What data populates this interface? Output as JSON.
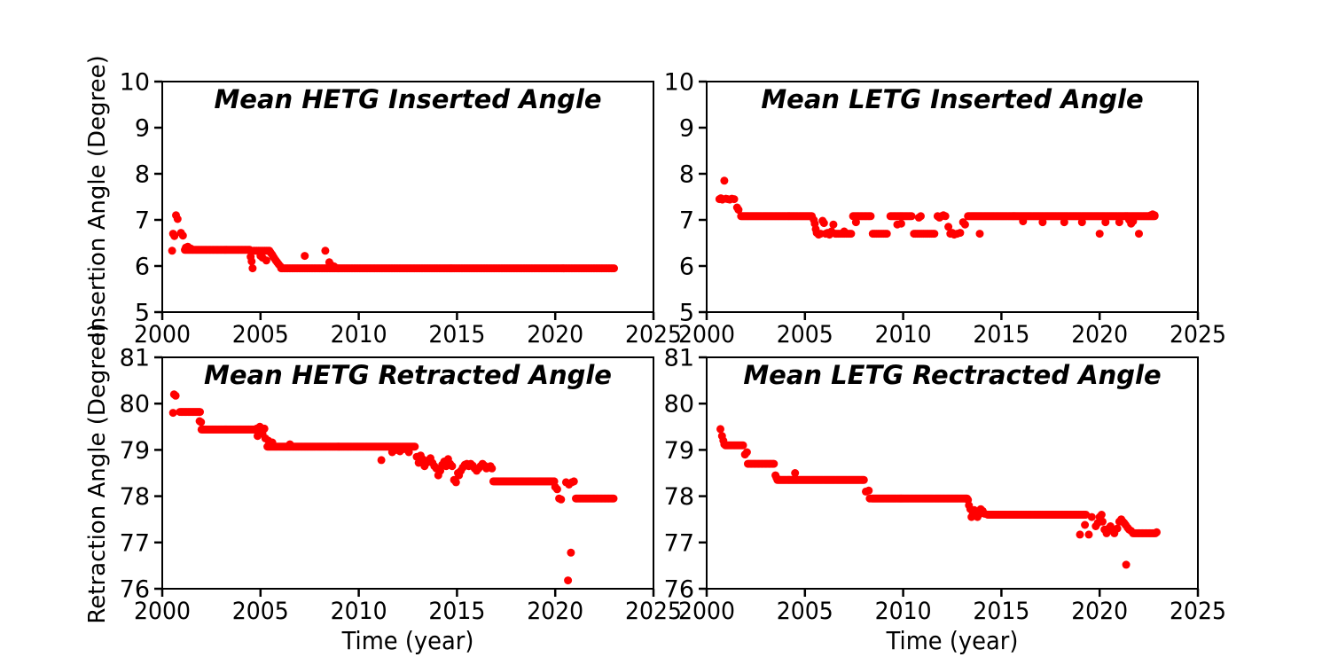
{
  "figure": {
    "background": "#ffffff",
    "axes_color": "#000000",
    "marker_color": "#ff0000"
  },
  "chart_data": [
    {
      "id": "hetg-inserted",
      "type": "scatter",
      "title": "Mean HETG Inserted Angle",
      "xlabel": "",
      "ylabel": "Insertion Angle (Degree)",
      "xlim": [
        2000,
        2025
      ],
      "ylim": [
        5,
        10
      ],
      "xticks": [
        2000,
        2005,
        2010,
        2015,
        2020,
        2025
      ],
      "yticks": [
        5,
        6,
        7,
        8,
        9,
        10
      ],
      "grid": false,
      "legend": "none",
      "marker_color": "#ff0000",
      "series": {
        "runs_format": "[x_start, x_end, y, x_step] dense monthly runs",
        "runs": [
          [
            2001.15,
            2004.45,
            6.35,
            0.06
          ],
          [
            2004.65,
            2005.45,
            6.33,
            0.08
          ],
          [
            2006.05,
            2023.0,
            5.95,
            0.07
          ]
        ],
        "points": [
          [
            2000.5,
            6.33
          ],
          [
            2000.55,
            6.7
          ],
          [
            2000.62,
            6.65
          ],
          [
            2000.7,
            7.1
          ],
          [
            2000.78,
            7.02
          ],
          [
            2000.95,
            6.72
          ],
          [
            2001.05,
            6.66
          ],
          [
            2001.2,
            6.4
          ],
          [
            2001.3,
            6.42
          ],
          [
            2001.45,
            6.38
          ],
          [
            2004.5,
            6.2
          ],
          [
            2004.55,
            6.1
          ],
          [
            2004.6,
            5.95
          ],
          [
            2005.0,
            6.22
          ],
          [
            2005.1,
            6.18
          ],
          [
            2005.3,
            6.12
          ],
          [
            2005.5,
            6.3
          ],
          [
            2005.55,
            6.27
          ],
          [
            2005.6,
            6.24
          ],
          [
            2005.65,
            6.2
          ],
          [
            2005.7,
            6.17
          ],
          [
            2005.78,
            6.12
          ],
          [
            2005.85,
            6.08
          ],
          [
            2005.92,
            6.04
          ],
          [
            2006.0,
            6.0
          ],
          [
            2007.25,
            6.22
          ],
          [
            2008.3,
            6.33
          ],
          [
            2008.5,
            6.08
          ],
          [
            2008.6,
            6.02
          ],
          [
            2008.75,
            5.99
          ]
        ]
      }
    },
    {
      "id": "letg-inserted",
      "type": "scatter",
      "title": "Mean LETG Inserted Angle",
      "xlabel": "",
      "ylabel": "",
      "xlim": [
        2000,
        2025
      ],
      "ylim": [
        5,
        10
      ],
      "xticks": [
        2000,
        2005,
        2010,
        2015,
        2020,
        2025
      ],
      "yticks": [
        5,
        6,
        7,
        8,
        9,
        10
      ],
      "grid": false,
      "legend": "none",
      "marker_color": "#ff0000",
      "series": {
        "runs_format": "[x_start, x_end, y, x_step] dense monthly runs",
        "runs": [
          [
            2001.75,
            2005.35,
            7.08,
            0.05
          ],
          [
            2006.55,
            2007.35,
            6.7,
            0.08
          ],
          [
            2007.45,
            2008.35,
            7.08,
            0.06
          ],
          [
            2008.45,
            2009.25,
            6.7,
            0.09
          ],
          [
            2009.35,
            2010.45,
            7.08,
            0.06
          ],
          [
            2010.55,
            2011.65,
            6.7,
            0.08
          ],
          [
            2013.3,
            2022.8,
            7.08,
            0.05
          ]
        ],
        "points": [
          [
            2000.65,
            7.45
          ],
          [
            2000.72,
            7.47
          ],
          [
            2000.8,
            7.44
          ],
          [
            2000.9,
            7.85
          ],
          [
            2000.98,
            7.46
          ],
          [
            2001.08,
            7.45
          ],
          [
            2001.18,
            7.44
          ],
          [
            2001.28,
            7.46
          ],
          [
            2001.4,
            7.45
          ],
          [
            2001.55,
            7.27
          ],
          [
            2001.62,
            7.22
          ],
          [
            2005.45,
            7.0
          ],
          [
            2005.5,
            6.92
          ],
          [
            2005.55,
            6.8
          ],
          [
            2005.6,
            6.72
          ],
          [
            2005.7,
            6.68
          ],
          [
            2005.8,
            6.7
          ],
          [
            2005.9,
            6.98
          ],
          [
            2005.97,
            6.93
          ],
          [
            2006.05,
            6.7
          ],
          [
            2006.15,
            6.72
          ],
          [
            2006.25,
            6.68
          ],
          [
            2006.35,
            6.75
          ],
          [
            2006.45,
            6.9
          ],
          [
            2007.0,
            6.75
          ],
          [
            2007.6,
            6.95
          ],
          [
            2009.7,
            6.9
          ],
          [
            2009.9,
            6.92
          ],
          [
            2010.8,
            7.05
          ],
          [
            2010.9,
            7.08
          ],
          [
            2011.75,
            7.08
          ],
          [
            2011.85,
            7.05
          ],
          [
            2011.95,
            7.08
          ],
          [
            2012.05,
            7.1
          ],
          [
            2012.15,
            7.08
          ],
          [
            2012.3,
            6.85
          ],
          [
            2012.4,
            6.7
          ],
          [
            2012.5,
            6.72
          ],
          [
            2012.6,
            6.68
          ],
          [
            2012.75,
            6.7
          ],
          [
            2012.9,
            6.72
          ],
          [
            2013.05,
            6.95
          ],
          [
            2013.15,
            6.9
          ],
          [
            2013.9,
            6.7
          ],
          [
            2016.1,
            6.97
          ],
          [
            2017.1,
            6.95
          ],
          [
            2018.2,
            6.95
          ],
          [
            2019.1,
            6.95
          ],
          [
            2020.0,
            6.7
          ],
          [
            2020.3,
            6.95
          ],
          [
            2021.0,
            6.95
          ],
          [
            2021.5,
            7.0
          ],
          [
            2021.6,
            6.92
          ],
          [
            2021.7,
            6.97
          ],
          [
            2022.0,
            6.7
          ],
          [
            2022.6,
            7.1
          ],
          [
            2022.7,
            7.12
          ],
          [
            2022.8,
            7.1
          ]
        ]
      }
    },
    {
      "id": "hetg-retracted",
      "type": "scatter",
      "title": "Mean HETG Retracted Angle",
      "xlabel": "Time (year)",
      "ylabel": "Retraction Angle (Degree)",
      "xlim": [
        2000,
        2025
      ],
      "ylim": [
        76,
        81
      ],
      "xticks": [
        2000,
        2005,
        2010,
        2015,
        2020,
        2025
      ],
      "yticks": [
        76,
        77,
        78,
        79,
        80,
        81
      ],
      "grid": false,
      "legend": "none",
      "marker_color": "#ff0000",
      "series": {
        "runs_format": "[x_start, x_end, y, x_step] dense monthly runs",
        "runs": [
          [
            2000.9,
            2001.95,
            79.82,
            0.06
          ],
          [
            2002.0,
            2004.75,
            79.44,
            0.05
          ],
          [
            2005.35,
            2012.85,
            79.07,
            0.05
          ],
          [
            2016.85,
            2019.95,
            78.32,
            0.05
          ],
          [
            2021.05,
            2023.0,
            77.95,
            0.06
          ]
        ],
        "points": [
          [
            2000.55,
            79.8
          ],
          [
            2000.6,
            80.2
          ],
          [
            2000.68,
            80.17
          ],
          [
            2001.9,
            79.62
          ],
          [
            2001.97,
            79.6
          ],
          [
            2004.8,
            79.46
          ],
          [
            2004.85,
            79.3
          ],
          [
            2004.9,
            79.44
          ],
          [
            2004.97,
            79.5
          ],
          [
            2005.05,
            79.42
          ],
          [
            2005.1,
            79.35
          ],
          [
            2005.2,
            79.46
          ],
          [
            2005.25,
            79.25
          ],
          [
            2005.4,
            79.2
          ],
          [
            2005.6,
            79.16
          ],
          [
            2006.5,
            79.12
          ],
          [
            2011.15,
            78.78
          ],
          [
            2011.7,
            78.95
          ],
          [
            2011.9,
            79.0
          ],
          [
            2012.1,
            78.97
          ],
          [
            2012.3,
            79.02
          ],
          [
            2012.55,
            78.95
          ],
          [
            2012.95,
            78.85
          ],
          [
            2013.05,
            78.72
          ],
          [
            2013.15,
            78.88
          ],
          [
            2013.25,
            78.8
          ],
          [
            2013.35,
            78.65
          ],
          [
            2013.45,
            78.72
          ],
          [
            2013.55,
            78.78
          ],
          [
            2013.65,
            78.82
          ],
          [
            2013.75,
            78.72
          ],
          [
            2013.85,
            78.65
          ],
          [
            2013.95,
            78.6
          ],
          [
            2014.05,
            78.45
          ],
          [
            2014.15,
            78.55
          ],
          [
            2014.25,
            78.68
          ],
          [
            2014.35,
            78.75
          ],
          [
            2014.45,
            78.65
          ],
          [
            2014.55,
            78.8
          ],
          [
            2014.65,
            78.7
          ],
          [
            2014.75,
            78.65
          ],
          [
            2014.85,
            78.35
          ],
          [
            2014.95,
            78.3
          ],
          [
            2015.05,
            78.5
          ],
          [
            2015.1,
            78.45
          ],
          [
            2015.2,
            78.55
          ],
          [
            2015.3,
            78.62
          ],
          [
            2015.4,
            78.68
          ],
          [
            2015.5,
            78.7
          ],
          [
            2015.6,
            78.65
          ],
          [
            2015.7,
            78.7
          ],
          [
            2015.8,
            78.66
          ],
          [
            2015.9,
            78.6
          ],
          [
            2016.0,
            78.55
          ],
          [
            2016.1,
            78.6
          ],
          [
            2016.2,
            78.65
          ],
          [
            2016.3,
            78.7
          ],
          [
            2016.4,
            78.66
          ],
          [
            2016.5,
            78.6
          ],
          [
            2016.6,
            78.62
          ],
          [
            2016.7,
            78.65
          ],
          [
            2016.78,
            78.6
          ],
          [
            2020.0,
            78.2
          ],
          [
            2020.1,
            78.15
          ],
          [
            2020.2,
            77.95
          ],
          [
            2020.3,
            77.93
          ],
          [
            2020.55,
            78.3
          ],
          [
            2020.7,
            78.25
          ],
          [
            2020.85,
            78.3
          ],
          [
            2020.95,
            78.32
          ],
          [
            2020.65,
            76.18
          ],
          [
            2020.8,
            76.78
          ]
        ]
      }
    },
    {
      "id": "letg-retracted",
      "type": "scatter",
      "title": "Mean LETG Rectracted Angle",
      "xlabel": "Time (year)",
      "ylabel": "",
      "xlim": [
        2000,
        2025
      ],
      "ylim": [
        76,
        81
      ],
      "xticks": [
        2000,
        2005,
        2010,
        2015,
        2020,
        2025
      ],
      "yticks": [
        76,
        77,
        78,
        79,
        80,
        81
      ],
      "grid": false,
      "legend": "none",
      "marker_color": "#ff0000",
      "series": {
        "runs_format": "[x_start, x_end, y, x_step] dense monthly runs",
        "runs": [
          [
            2000.95,
            2001.9,
            79.1,
            0.06
          ],
          [
            2002.1,
            2003.45,
            78.7,
            0.06
          ],
          [
            2003.6,
            2008.0,
            78.35,
            0.05
          ],
          [
            2008.4,
            2013.25,
            77.95,
            0.05
          ],
          [
            2014.3,
            2019.3,
            77.6,
            0.05
          ],
          [
            2021.7,
            2022.85,
            77.2,
            0.06
          ]
        ],
        "points": [
          [
            2000.7,
            79.45
          ],
          [
            2000.78,
            79.3
          ],
          [
            2000.85,
            79.2
          ],
          [
            2000.9,
            79.12
          ],
          [
            2001.95,
            78.9
          ],
          [
            2002.05,
            78.95
          ],
          [
            2003.5,
            78.45
          ],
          [
            2003.55,
            78.4
          ],
          [
            2004.5,
            78.5
          ],
          [
            2008.1,
            78.1
          ],
          [
            2008.25,
            78.12
          ],
          [
            2008.3,
            77.95
          ],
          [
            2013.3,
            77.92
          ],
          [
            2013.35,
            77.8
          ],
          [
            2013.42,
            77.72
          ],
          [
            2013.48,
            77.55
          ],
          [
            2013.55,
            77.62
          ],
          [
            2013.62,
            77.7
          ],
          [
            2013.7,
            77.65
          ],
          [
            2013.78,
            77.55
          ],
          [
            2013.85,
            77.6
          ],
          [
            2013.95,
            77.72
          ],
          [
            2014.05,
            77.68
          ],
          [
            2014.15,
            77.62
          ],
          [
            2019.0,
            77.17
          ],
          [
            2019.25,
            77.38
          ],
          [
            2019.45,
            77.17
          ],
          [
            2019.6,
            77.55
          ],
          [
            2019.8,
            77.35
          ],
          [
            2019.9,
            77.42
          ],
          [
            2020.0,
            77.55
          ],
          [
            2020.1,
            77.6
          ],
          [
            2020.15,
            77.45
          ],
          [
            2020.25,
            77.28
          ],
          [
            2020.35,
            77.2
          ],
          [
            2020.45,
            77.3
          ],
          [
            2020.55,
            77.35
          ],
          [
            2020.65,
            77.25
          ],
          [
            2020.75,
            77.2
          ],
          [
            2020.9,
            77.3
          ],
          [
            2021.0,
            77.45
          ],
          [
            2021.1,
            77.5
          ],
          [
            2021.18,
            77.45
          ],
          [
            2021.25,
            77.42
          ],
          [
            2021.32,
            77.38
          ],
          [
            2021.42,
            77.32
          ],
          [
            2021.5,
            77.28
          ],
          [
            2021.6,
            77.25
          ],
          [
            2021.35,
            76.52
          ],
          [
            2022.9,
            77.22
          ]
        ]
      }
    }
  ]
}
